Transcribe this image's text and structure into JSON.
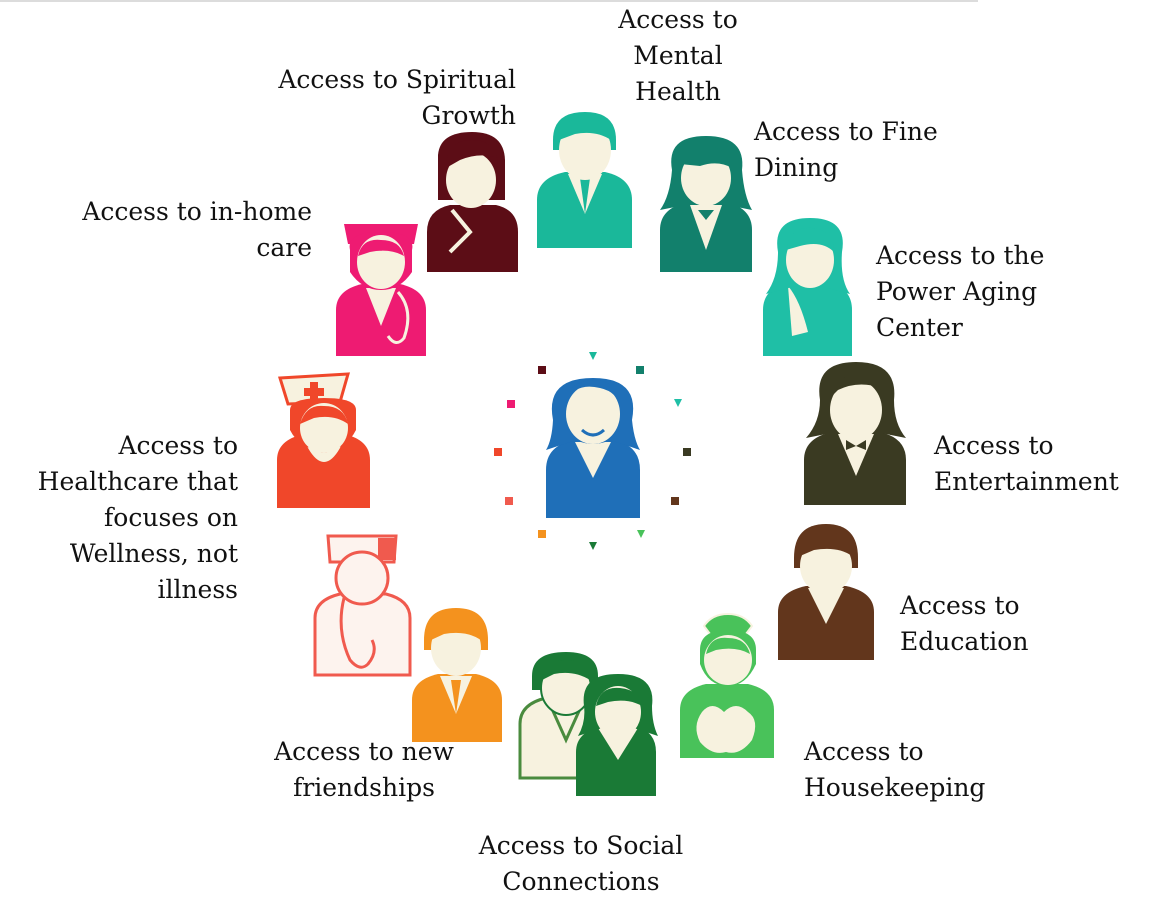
{
  "labels": {
    "mental_health": "Access to\nMental\nHealth",
    "spiritual_growth": "Access to Spiritual\nGrowth",
    "fine_dining": "Access to  Fine\nDining",
    "in_home_care": "Access to in-home\ncare",
    "power_aging_center": "Access to the\nPower Aging\nCenter",
    "healthcare": "Access to\nHealthcare that\nfocuses on\nWellness, not\nillness",
    "entertainment": "Access to\nEntertainment",
    "education": "Access to\nEducation",
    "housekeeping": "Access to\nHousekeeping",
    "new_friendships": "Access to new\nfriendships",
    "social_connections": "Access to Social\nConnections"
  },
  "colors": {
    "spiritual": "#5c0d16",
    "mental": "#1ab89a",
    "dining": "#12806c",
    "power_aging": "#1fbfa6",
    "in_home": "#ee1b72",
    "healthcare": "#f0472a",
    "doctor": "#f05a4e",
    "entertainment": "#3a3a22",
    "education": "#62361c",
    "housekeeping": "#49c25a",
    "friendships": "#f4921e",
    "social_front": "#1a7a36",
    "social_back": "#4a8b3e",
    "center": "#1f6fb8",
    "face": "#f7f2df"
  },
  "icons": {
    "center": "woman-center-icon",
    "spiritual": "priest-icon",
    "mental": "doctor-man-icon",
    "dining": "waitress-icon",
    "power_aging": "woman-icon",
    "in_home": "nurse-cap-icon",
    "healthcare": "nurse-cross-icon",
    "doctor": "doctor-stethoscope-icon",
    "entertainment": "man-bowtie-icon",
    "education": "teacher-icon",
    "housekeeping": "housekeeper-icon",
    "friendships": "man-icon",
    "social": "couple-icon"
  }
}
